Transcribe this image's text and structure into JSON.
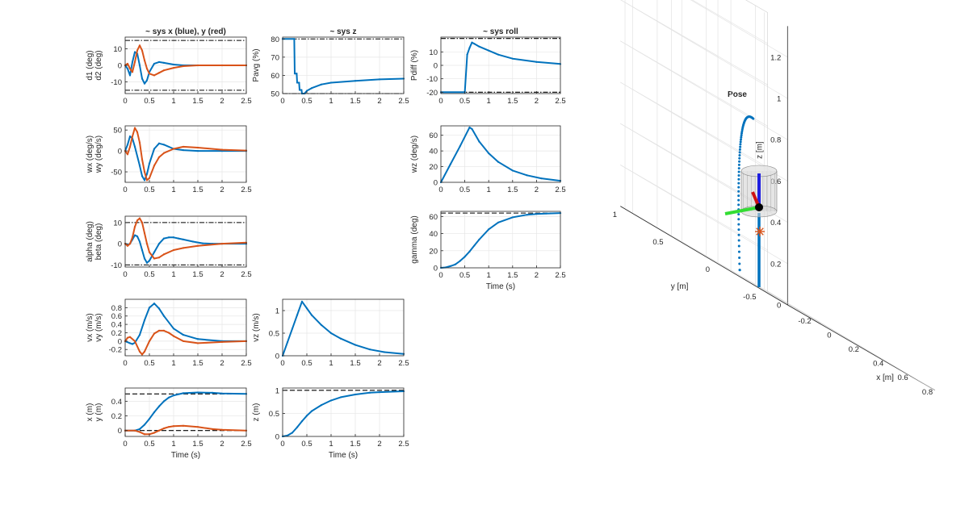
{
  "chart_data": [
    {
      "type": "line",
      "title": "~ sys x (blue), y (red)",
      "ylabel": [
        "d1 (deg)",
        "d2 (deg)"
      ],
      "xlabel": "",
      "xlim": [
        0,
        2.5
      ],
      "ylim": [
        -17,
        17
      ],
      "yticks": [
        -10,
        0,
        10
      ],
      "xticks": [
        0,
        0.5,
        1,
        1.5,
        2,
        2.5
      ],
      "grid": true,
      "refs": [
        {
          "y": 15,
          "style": "dashdot"
        },
        {
          "y": -15,
          "style": "dashdot"
        }
      ],
      "series": [
        {
          "color": "#0072BD",
          "x": [
            0,
            0.05,
            0.1,
            0.15,
            0.2,
            0.25,
            0.3,
            0.35,
            0.4,
            0.45,
            0.5,
            0.6,
            0.7,
            0.8,
            1,
            1.2,
            1.5,
            2,
            2.5
          ],
          "y": [
            0,
            -2,
            -6,
            2,
            8,
            7,
            0,
            -8,
            -11,
            -9,
            -4,
            1,
            2,
            1.5,
            0.5,
            0,
            0,
            0,
            0
          ]
        },
        {
          "color": "#D95319",
          "x": [
            0,
            0.05,
            0.1,
            0.15,
            0.2,
            0.25,
            0.3,
            0.35,
            0.4,
            0.45,
            0.5,
            0.6,
            0.7,
            0.8,
            1,
            1.2,
            1.5,
            2,
            2.5
          ],
          "y": [
            0,
            1,
            -2,
            -4,
            2,
            9,
            12,
            9,
            3,
            -2,
            -5,
            -6,
            -4.5,
            -3,
            -1.5,
            -0.5,
            0,
            0,
            0
          ]
        }
      ]
    },
    {
      "type": "line",
      "title": "~ sys z",
      "ylabel": [
        "Pavg (%)"
      ],
      "xlabel": "",
      "xlim": [
        0,
        2.5
      ],
      "ylim": [
        50,
        81
      ],
      "yticks": [
        50,
        60,
        70,
        80
      ],
      "xticks": [
        0,
        0.5,
        1,
        1.5,
        2,
        2.5
      ],
      "grid": true,
      "refs": [
        {
          "y": 80,
          "style": "dashdot"
        },
        {
          "y": 50,
          "style": "dashdot"
        }
      ],
      "series": [
        {
          "color": "#0072BD",
          "x": [
            0,
            0.24,
            0.25,
            0.29,
            0.3,
            0.34,
            0.35,
            0.39,
            0.4,
            0.45,
            0.5,
            0.6,
            0.8,
            1,
            1.5,
            2,
            2.5
          ],
          "y": [
            80,
            80,
            61,
            61,
            56,
            56,
            52,
            52,
            50,
            50,
            51.5,
            53,
            55,
            56,
            57,
            57.8,
            58.2
          ]
        }
      ]
    },
    {
      "type": "line",
      "title": "~ sys roll",
      "ylabel": [
        "Pdiff (%)"
      ],
      "xlabel": "",
      "xlim": [
        0,
        2.5
      ],
      "ylim": [
        -21,
        21
      ],
      "yticks": [
        -20,
        -10,
        0,
        10
      ],
      "xticks": [
        0,
        0.5,
        1,
        1.5,
        2,
        2.5
      ],
      "grid": true,
      "refs": [
        {
          "y": 20,
          "style": "dashdot"
        },
        {
          "y": -20,
          "style": "dashdot"
        }
      ],
      "series": [
        {
          "color": "#0072BD",
          "x": [
            0,
            0.5,
            0.5,
            0.55,
            0.6,
            0.65,
            0.7,
            0.8,
            1,
            1.2,
            1.5,
            2,
            2.5
          ],
          "y": [
            -20,
            -20,
            -20,
            8,
            13,
            17,
            16,
            14,
            11,
            8,
            5,
            2.5,
            1
          ]
        }
      ]
    },
    {
      "type": "line",
      "title": "",
      "ylabel": [
        "wx (deg/s)",
        "wy (deg/s)"
      ],
      "xlabel": "",
      "xlim": [
        0,
        2.5
      ],
      "ylim": [
        -75,
        60
      ],
      "yticks": [
        -50,
        0,
        50
      ],
      "xticks": [
        0,
        0.5,
        1,
        1.5,
        2,
        2.5
      ],
      "grid": true,
      "refs": [],
      "series": [
        {
          "color": "#0072BD",
          "x": [
            0,
            0.05,
            0.1,
            0.15,
            0.2,
            0.3,
            0.35,
            0.4,
            0.45,
            0.5,
            0.6,
            0.7,
            0.8,
            1,
            1.2,
            1.5,
            2,
            2.5
          ],
          "y": [
            0,
            15,
            35,
            30,
            10,
            -35,
            -60,
            -70,
            -55,
            -30,
            5,
            18,
            15,
            5,
            2,
            0,
            0,
            0
          ]
        },
        {
          "color": "#D95319",
          "x": [
            0,
            0.05,
            0.1,
            0.15,
            0.2,
            0.25,
            0.3,
            0.35,
            0.4,
            0.45,
            0.5,
            0.6,
            0.7,
            0.8,
            1,
            1.2,
            1.5,
            2,
            2.5
          ],
          "y": [
            0,
            -8,
            10,
            35,
            55,
            45,
            20,
            -20,
            -50,
            -70,
            -65,
            -35,
            -15,
            -5,
            5,
            10,
            8,
            3,
            1
          ]
        }
      ]
    },
    {
      "type": "line",
      "title": "",
      "ylabel": [
        "wz (deg/s)"
      ],
      "xlabel": "",
      "xlim": [
        0,
        2.5
      ],
      "ylim": [
        0,
        72
      ],
      "yticks": [
        0,
        20,
        40,
        60
      ],
      "xticks": [
        0,
        0.5,
        1,
        1.5,
        2,
        2.5
      ],
      "grid": true,
      "refs": [],
      "series": [
        {
          "color": "#0072BD",
          "x": [
            0,
            0.2,
            0.4,
            0.6,
            0.65,
            0.8,
            1,
            1.2,
            1.5,
            1.8,
            2.1,
            2.5
          ],
          "y": [
            0,
            23,
            46,
            70,
            68,
            52,
            37,
            26,
            15,
            9,
            5,
            2
          ]
        }
      ]
    },
    {
      "type": "line",
      "title": "",
      "ylabel": [
        "alpha (deg)",
        "beta (deg)"
      ],
      "xlabel": "",
      "xlim": [
        0,
        2.5
      ],
      "ylim": [
        -11,
        13
      ],
      "yticks": [
        -10,
        0,
        10
      ],
      "xticks": [
        0,
        0.5,
        1,
        1.5,
        2,
        2.5
      ],
      "grid": true,
      "refs": [
        {
          "y": 10,
          "style": "dashdot"
        },
        {
          "y": -10,
          "style": "dashdot"
        }
      ],
      "series": [
        {
          "color": "#0072BD",
          "x": [
            0,
            0.05,
            0.1,
            0.15,
            0.2,
            0.25,
            0.3,
            0.35,
            0.4,
            0.45,
            0.5,
            0.6,
            0.7,
            0.8,
            0.9,
            1,
            1.1,
            1.2,
            1.4,
            1.6,
            1.8,
            2,
            2.5
          ],
          "y": [
            0,
            -0.5,
            0,
            2,
            4,
            3.5,
            1,
            -3,
            -7,
            -9,
            -8,
            -4,
            0,
            2.5,
            3,
            3,
            2.5,
            2,
            1,
            0.2,
            0,
            0,
            0
          ]
        },
        {
          "color": "#D95319",
          "x": [
            0,
            0.05,
            0.1,
            0.15,
            0.2,
            0.25,
            0.3,
            0.35,
            0.4,
            0.45,
            0.5,
            0.6,
            0.7,
            0.8,
            1,
            1.2,
            1.5,
            2,
            2.5
          ],
          "y": [
            0,
            -1,
            0,
            3,
            8,
            11,
            12,
            10,
            5,
            0,
            -4,
            -7,
            -6.5,
            -5,
            -3,
            -2,
            -1,
            0,
            0.5
          ]
        }
      ]
    },
    {
      "type": "line",
      "title": "",
      "ylabel": [
        "gamma (deg)"
      ],
      "xlabel": "Time (s)",
      "xlim": [
        0,
        2.5
      ],
      "ylim": [
        0,
        66
      ],
      "yticks": [
        0,
        20,
        40,
        60
      ],
      "xticks": [
        0,
        0.5,
        1,
        1.5,
        2,
        2.5
      ],
      "grid": true,
      "refs": [
        {
          "y": 64,
          "style": "dashed"
        }
      ],
      "series": [
        {
          "color": "#0072BD",
          "x": [
            0,
            0.1,
            0.2,
            0.3,
            0.4,
            0.5,
            0.6,
            0.7,
            0.8,
            1,
            1.2,
            1.5,
            1.8,
            2,
            2.2,
            2.5
          ],
          "y": [
            0,
            0.5,
            2,
            4,
            8,
            13,
            19,
            26,
            33,
            45,
            53,
            59,
            62,
            63,
            63.5,
            64
          ]
        }
      ]
    },
    {
      "type": "line",
      "title": "",
      "ylabel": [
        "vx (m/s)",
        "vy (m/s)"
      ],
      "xlabel": "",
      "xlim": [
        0,
        2.5
      ],
      "ylim": [
        -0.35,
        1
      ],
      "yticks": [
        -0.2,
        0,
        0.2,
        0.4,
        0.6,
        0.8
      ],
      "xticks": [
        0,
        0.5,
        1,
        1.5,
        2,
        2.5
      ],
      "grid": true,
      "refs": [],
      "series": [
        {
          "color": "#0072BD",
          "x": [
            0,
            0.1,
            0.15,
            0.2,
            0.3,
            0.4,
            0.5,
            0.6,
            0.7,
            0.8,
            1,
            1.2,
            1.5,
            2,
            2.5
          ],
          "y": [
            0,
            -0.05,
            -0.07,
            -0.04,
            0.15,
            0.5,
            0.8,
            0.9,
            0.78,
            0.6,
            0.3,
            0.15,
            0.05,
            0,
            0
          ]
        },
        {
          "color": "#D95319",
          "x": [
            0,
            0.05,
            0.1,
            0.2,
            0.3,
            0.35,
            0.4,
            0.5,
            0.6,
            0.7,
            0.8,
            0.9,
            1,
            1.2,
            1.5,
            2,
            2.5
          ],
          "y": [
            0,
            0.08,
            0.1,
            0.0,
            -0.25,
            -0.32,
            -0.25,
            0.0,
            0.18,
            0.25,
            0.25,
            0.2,
            0.12,
            0.0,
            -0.05,
            -0.02,
            0
          ]
        }
      ]
    },
    {
      "type": "line",
      "title": "",
      "ylabel": [
        "vz (m/s)"
      ],
      "xlabel": "",
      "xlim": [
        0,
        2.5
      ],
      "ylim": [
        0,
        1.25
      ],
      "yticks": [
        0,
        0.5,
        1
      ],
      "xticks": [
        0,
        0.5,
        1,
        1.5,
        2,
        2.5
      ],
      "grid": true,
      "refs": [],
      "series": [
        {
          "color": "#0072BD",
          "x": [
            0,
            0.1,
            0.2,
            0.3,
            0.4,
            0.5,
            0.6,
            0.8,
            1,
            1.2,
            1.5,
            1.8,
            2.1,
            2.5
          ],
          "y": [
            0,
            0.3,
            0.6,
            0.9,
            1.2,
            1.05,
            0.9,
            0.68,
            0.5,
            0.38,
            0.24,
            0.14,
            0.08,
            0.04
          ]
        }
      ]
    },
    {
      "type": "line",
      "title": "",
      "ylabel": [
        "x (m)",
        "y (m)"
      ],
      "xlabel": "Time (s)",
      "xlim": [
        0,
        2.5
      ],
      "ylim": [
        -0.08,
        0.58
      ],
      "yticks": [
        0,
        0.2,
        0.4
      ],
      "xticks": [
        0,
        0.5,
        1,
        1.5,
        2,
        2.5
      ],
      "grid": true,
      "refs": [
        {
          "y": 0.5,
          "style": "dashed"
        },
        {
          "y": 0,
          "style": "dashed"
        }
      ],
      "series": [
        {
          "color": "#0072BD",
          "x": [
            0,
            0.2,
            0.3,
            0.4,
            0.5,
            0.6,
            0.7,
            0.8,
            0.9,
            1,
            1.2,
            1.5,
            1.8,
            2,
            2.5
          ],
          "y": [
            0,
            0,
            0.02,
            0.08,
            0.16,
            0.25,
            0.33,
            0.4,
            0.45,
            0.48,
            0.51,
            0.52,
            0.515,
            0.505,
            0.5
          ]
        },
        {
          "color": "#D95319",
          "x": [
            0,
            0.2,
            0.3,
            0.4,
            0.5,
            0.6,
            0.7,
            0.8,
            0.9,
            1,
            1.2,
            1.5,
            1.8,
            2,
            2.5
          ],
          "y": [
            0,
            0,
            -0.02,
            -0.05,
            -0.05,
            -0.03,
            0,
            0.03,
            0.05,
            0.06,
            0.065,
            0.05,
            0.02,
            0.01,
            0
          ]
        }
      ]
    },
    {
      "type": "line",
      "title": "",
      "ylabel": [
        "z (m)"
      ],
      "xlabel": "Time (s)",
      "xlim": [
        0,
        2.5
      ],
      "ylim": [
        0,
        1.05
      ],
      "yticks": [
        0,
        0.5,
        1
      ],
      "xticks": [
        0,
        0.5,
        1,
        1.5,
        2,
        2.5
      ],
      "grid": true,
      "refs": [
        {
          "y": 1,
          "style": "dashed"
        }
      ],
      "series": [
        {
          "color": "#0072BD",
          "x": [
            0,
            0.1,
            0.2,
            0.3,
            0.4,
            0.5,
            0.6,
            0.8,
            1,
            1.2,
            1.5,
            1.8,
            2,
            2.5
          ],
          "y": [
            0,
            0.02,
            0.08,
            0.2,
            0.33,
            0.45,
            0.55,
            0.68,
            0.78,
            0.85,
            0.91,
            0.95,
            0.96,
            0.98
          ]
        }
      ]
    },
    {
      "type": "scatter",
      "title": "Pose",
      "xlabel": "x [m]",
      "ylabel": "y [m]",
      "zlabel": "z [m]",
      "xticks": [
        -0.2,
        0,
        0.2,
        0.4,
        0.6,
        0.8
      ],
      "yticks": [
        -0.5,
        0,
        0.5,
        1
      ],
      "zticks": [
        0,
        0.2,
        0.4,
        0.6,
        0.8,
        1,
        1.2
      ],
      "grid": true
    }
  ]
}
